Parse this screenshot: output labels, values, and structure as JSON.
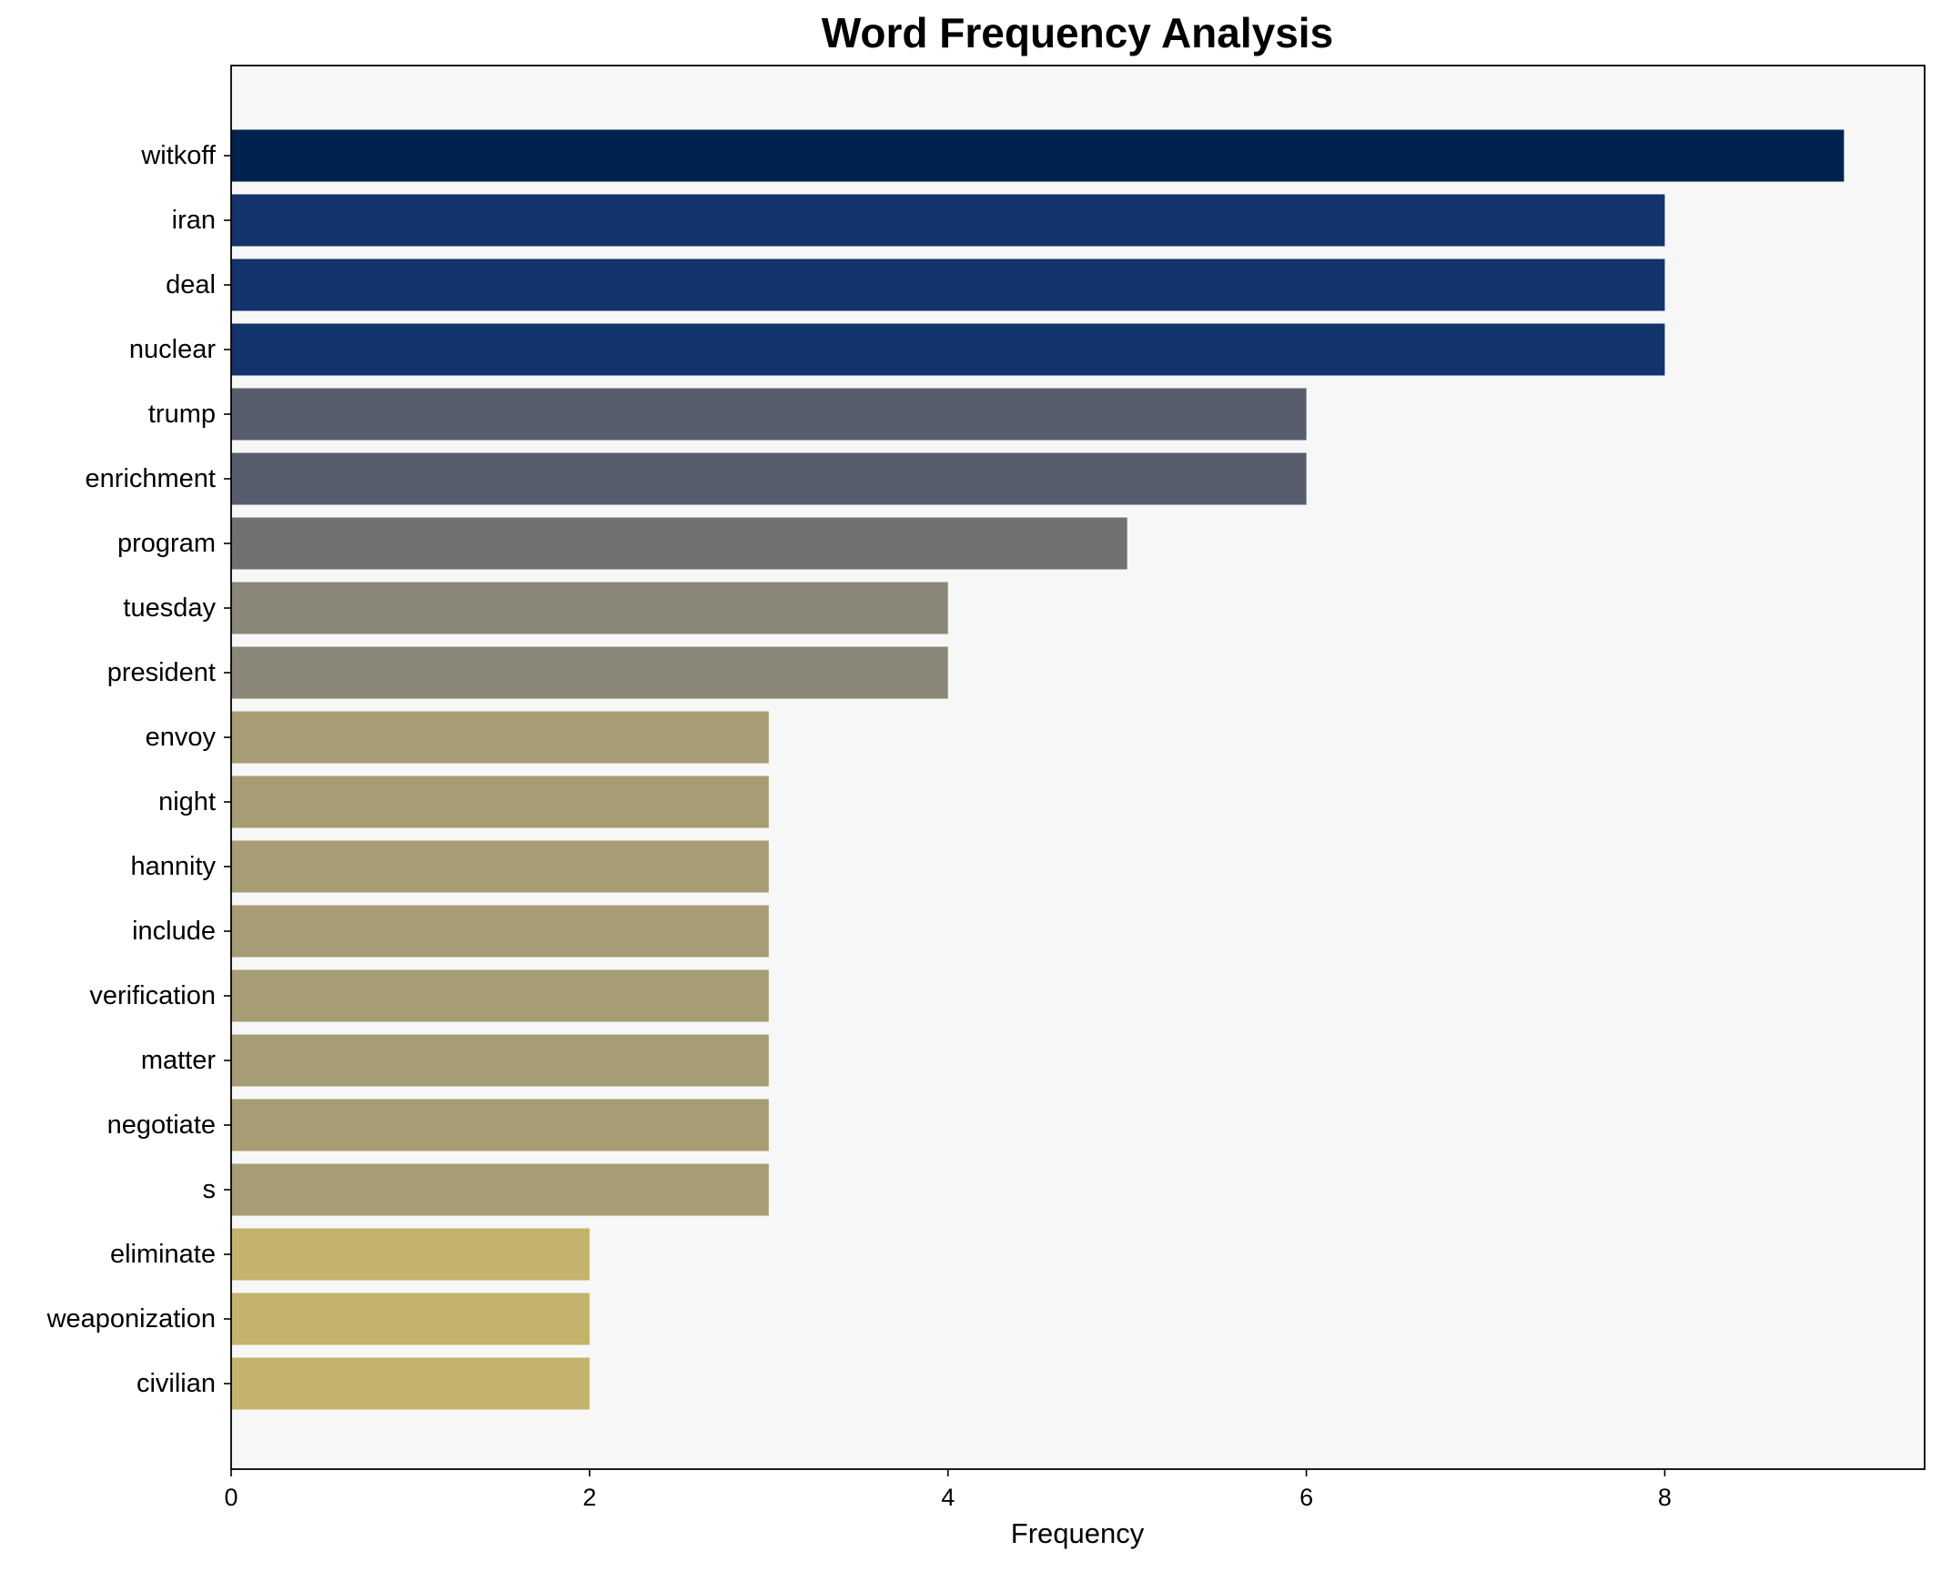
{
  "chart_data": {
    "type": "bar",
    "orientation": "horizontal",
    "title": "Word Frequency Analysis",
    "xlabel": "Frequency",
    "ylabel": "",
    "categories": [
      "witkoff",
      "iran",
      "deal",
      "nuclear",
      "trump",
      "enrichment",
      "program",
      "tuesday",
      "president",
      "envoy",
      "night",
      "hannity",
      "include",
      "verification",
      "matter",
      "negotiate",
      "s",
      "eliminate",
      "weaponization",
      "civilian"
    ],
    "values": [
      9,
      8,
      8,
      8,
      6,
      6,
      5,
      4,
      4,
      3,
      3,
      3,
      3,
      3,
      3,
      3,
      3,
      2,
      2,
      2
    ],
    "colors": [
      "#00224e",
      "#13336c",
      "#13336c",
      "#13336c",
      "#575d6d",
      "#575d6d",
      "#707173",
      "#8a8779",
      "#8a8779",
      "#a69d75",
      "#a69d75",
      "#a69d75",
      "#a69d75",
      "#a69d75",
      "#a69d75",
      "#a69d75",
      "#a69d75",
      "#c4b36a",
      "#c4b36a",
      "#c4b36a"
    ],
    "xlim": [
      0,
      9.45
    ],
    "xticks": [
      0,
      2,
      4,
      6,
      8
    ],
    "grid": false,
    "legend": "none",
    "plot_background": "#f7f7f7"
  }
}
